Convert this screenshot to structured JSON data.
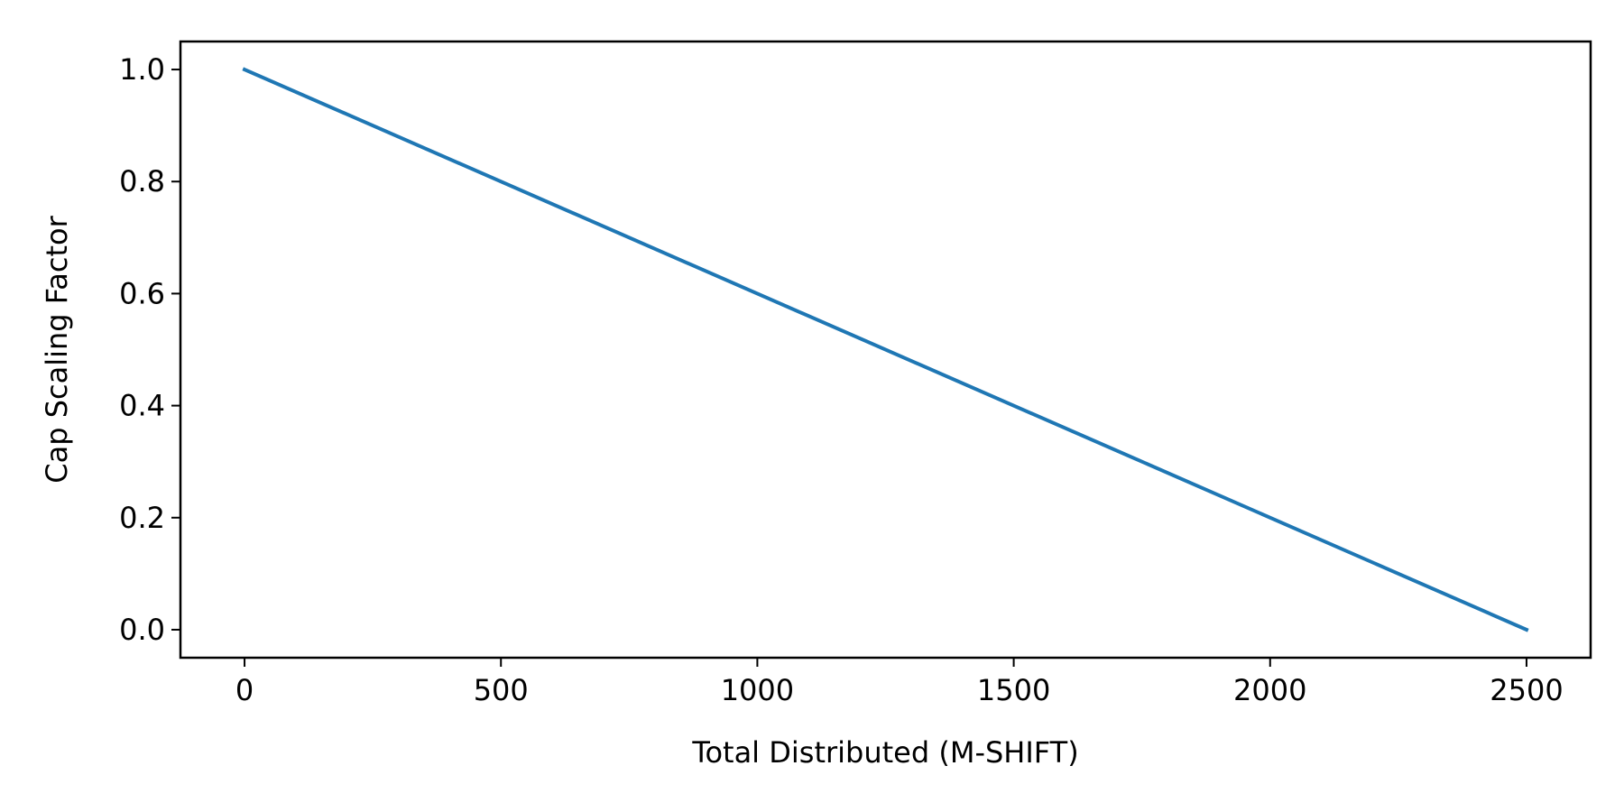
{
  "chart_data": {
    "type": "line",
    "title": "",
    "xlabel": "Total Distributed (M-SHIFT)",
    "ylabel": "Cap Scaling Factor",
    "xlim": [
      -125,
      2625
    ],
    "ylim": [
      -0.05,
      1.05
    ],
    "x_ticks": [
      0,
      500,
      1000,
      1500,
      2000,
      2500
    ],
    "x_tick_labels": [
      "0",
      "500",
      "1000",
      "1500",
      "2000",
      "2500"
    ],
    "y_ticks": [
      0.0,
      0.2,
      0.4,
      0.6,
      0.8,
      1.0
    ],
    "y_tick_labels": [
      "0.0",
      "0.2",
      "0.4",
      "0.6",
      "0.8",
      "1.0"
    ],
    "grid": false,
    "legend": "none",
    "series": [
      {
        "color": "#1f77b4",
        "x": [
          0,
          2500
        ],
        "y": [
          1.0,
          0.0
        ]
      }
    ]
  }
}
